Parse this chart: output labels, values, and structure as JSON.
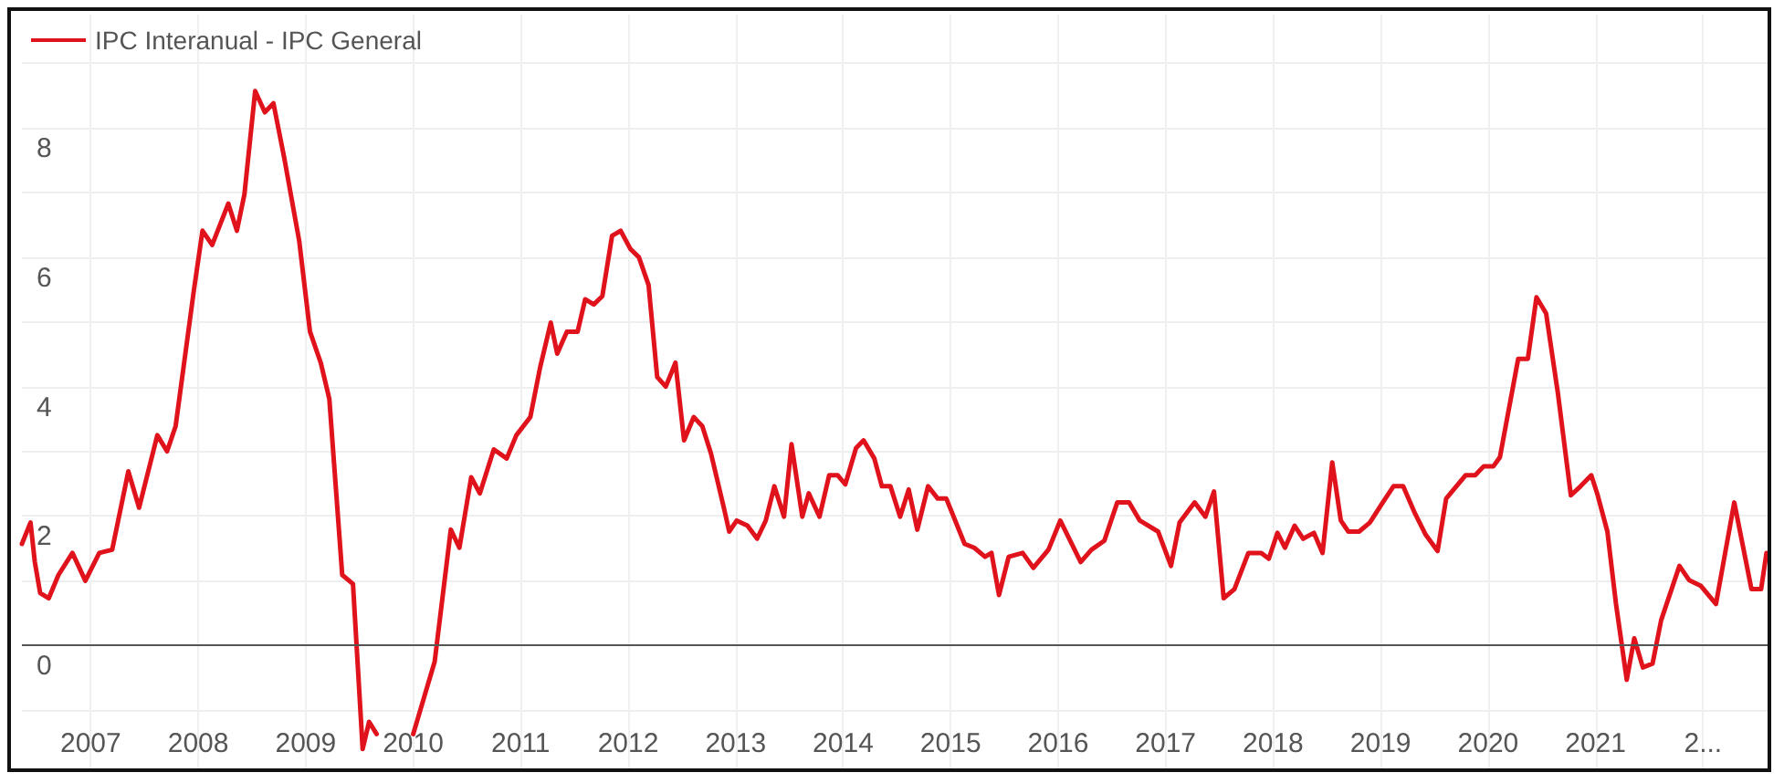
{
  "chart_data": {
    "type": "line",
    "xlim": [
      2006.36,
      2022.6
    ],
    "ylim": [
      -1.9,
      9.75
    ],
    "xticks": [
      2007,
      2008,
      2009,
      2010,
      2011,
      2012,
      2013,
      2014,
      2015,
      2016,
      2017,
      2018,
      2019,
      2020,
      2021,
      {
        "value": 2022,
        "label": "2..."
      }
    ],
    "yticks": [
      {
        "value": -1,
        "label": null
      },
      0,
      {
        "value": 1,
        "label": null
      },
      2,
      {
        "value": 3,
        "label": null
      },
      4,
      {
        "value": 5,
        "label": null
      },
      6,
      {
        "value": 7,
        "label": null
      },
      8,
      {
        "value": 9,
        "label": null
      }
    ],
    "grid": true,
    "legend": "top left",
    "marker": "none",
    "line_style": "solid",
    "ref_lines": [
      {
        "axis": "y",
        "value": 0,
        "color": "#555555"
      }
    ],
    "series": [
      {
        "name": "IPC Interanual - IPC General",
        "color": "#e0121b",
        "x": [
          2006.36,
          2006.44,
          2006.48,
          2006.53,
          2006.61,
          2006.7,
          2006.83,
          2006.95,
          2007.08,
          2007.2,
          2007.35,
          2007.45,
          2007.62,
          2007.71,
          2007.79,
          2007.96,
          2008.04,
          2008.13,
          2008.28,
          2008.36,
          2008.43,
          2008.53,
          2008.62,
          2008.7,
          2008.8,
          2008.94,
          2009.04,
          2009.14,
          2009.22,
          2009.34,
          2009.44,
          2009.53,
          2009.59,
          2009.66,
          2009.75,
          2010.0,
          2010.2,
          2010.35,
          2010.43,
          2010.54,
          2010.62,
          2010.75,
          2010.87,
          2010.96,
          2011.09,
          2011.18,
          2011.28,
          2011.34,
          2011.43,
          2011.53,
          2011.6,
          2011.68,
          2011.76,
          2011.85,
          2011.93,
          2012.02,
          2012.1,
          2012.19,
          2012.27,
          2012.35,
          2012.44,
          2012.52,
          2012.61,
          2012.69,
          2012.77,
          2012.89,
          2012.94,
          2013.01,
          2013.11,
          2013.2,
          2013.28,
          2013.36,
          2013.45,
          2013.52,
          2013.62,
          2013.68,
          2013.78,
          2013.87,
          2013.95,
          2014.02,
          2014.12,
          2014.19,
          2014.29,
          2014.36,
          2014.44,
          2014.53,
          2014.61,
          2014.69,
          2014.79,
          2014.88,
          2014.96,
          2015.13,
          2015.22,
          2015.32,
          2015.38,
          2015.45,
          2015.54,
          2015.67,
          2015.77,
          2015.91,
          2016.02,
          2016.21,
          2016.31,
          2016.43,
          2016.55,
          2016.66,
          2016.76,
          2016.93,
          2017.05,
          2017.13,
          2017.27,
          2017.37,
          2017.45,
          2017.54,
          2017.64,
          2017.77,
          2017.89,
          2017.96,
          2018.04,
          2018.11,
          2018.2,
          2018.28,
          2018.38,
          2018.46,
          2018.55,
          2018.63,
          2018.7,
          2018.8,
          2018.9,
          2019.02,
          2019.12,
          2019.21,
          2019.32,
          2019.42,
          2019.53,
          2019.61,
          2019.68,
          2019.79,
          2019.88,
          2019.96,
          2020.05,
          2020.11,
          2020.28,
          2020.37,
          2020.45,
          2020.54,
          2020.65,
          2020.77,
          2020.86,
          2020.96,
          2021.02,
          2021.11,
          2021.19,
          2021.29,
          2021.36,
          2021.44,
          2021.53,
          2021.61,
          2021.78,
          2021.87,
          2021.98,
          2022.12,
          2022.29,
          2022.45,
          2022.54,
          2022.59
        ],
        "values": [
          1.57,
          1.9,
          1.29,
          0.81,
          0.73,
          1.09,
          1.43,
          1.0,
          1.43,
          1.48,
          2.69,
          2.13,
          3.25,
          3.0,
          3.39,
          5.49,
          6.41,
          6.19,
          6.83,
          6.41,
          6.97,
          8.57,
          8.24,
          8.38,
          7.54,
          6.25,
          4.85,
          4.37,
          3.81,
          1.09,
          0.95,
          -1.6,
          -1.18,
          -1.37,
          null,
          -1.37,
          -0.25,
          1.79,
          1.51,
          2.6,
          2.35,
          3.03,
          2.89,
          3.25,
          3.53,
          4.29,
          4.99,
          4.51,
          4.85,
          4.85,
          5.35,
          5.27,
          5.4,
          6.33,
          6.41,
          6.13,
          6.0,
          5.57,
          4.15,
          4.0,
          4.37,
          3.17,
          3.53,
          3.39,
          2.97,
          2.13,
          1.76,
          1.93,
          1.85,
          1.65,
          1.93,
          2.46,
          1.99,
          3.11,
          1.99,
          2.35,
          1.99,
          2.63,
          2.63,
          2.49,
          3.05,
          3.17,
          2.89,
          2.46,
          2.46,
          1.99,
          2.41,
          1.79,
          2.46,
          2.27,
          2.27,
          1.57,
          1.51,
          1.37,
          1.43,
          0.78,
          1.37,
          1.43,
          1.2,
          1.48,
          1.93,
          1.29,
          1.48,
          1.62,
          2.21,
          2.21,
          1.93,
          1.76,
          1.23,
          1.9,
          2.21,
          1.99,
          2.38,
          0.73,
          0.87,
          1.43,
          1.43,
          1.34,
          1.74,
          1.51,
          1.85,
          1.65,
          1.74,
          1.43,
          2.83,
          1.93,
          1.76,
          1.76,
          1.9,
          2.21,
          2.46,
          2.46,
          2.04,
          1.71,
          1.46,
          2.27,
          2.41,
          2.63,
          2.63,
          2.77,
          2.77,
          2.91,
          4.43,
          4.43,
          5.38,
          5.13,
          3.89,
          2.32,
          2.46,
          2.63,
          2.32,
          1.76,
          0.64,
          -0.53,
          0.11,
          -0.34,
          -0.28,
          0.39,
          1.23,
          1.01,
          0.92,
          0.64,
          2.21,
          0.87,
          0.87,
          1.43
        ]
      }
    ]
  }
}
